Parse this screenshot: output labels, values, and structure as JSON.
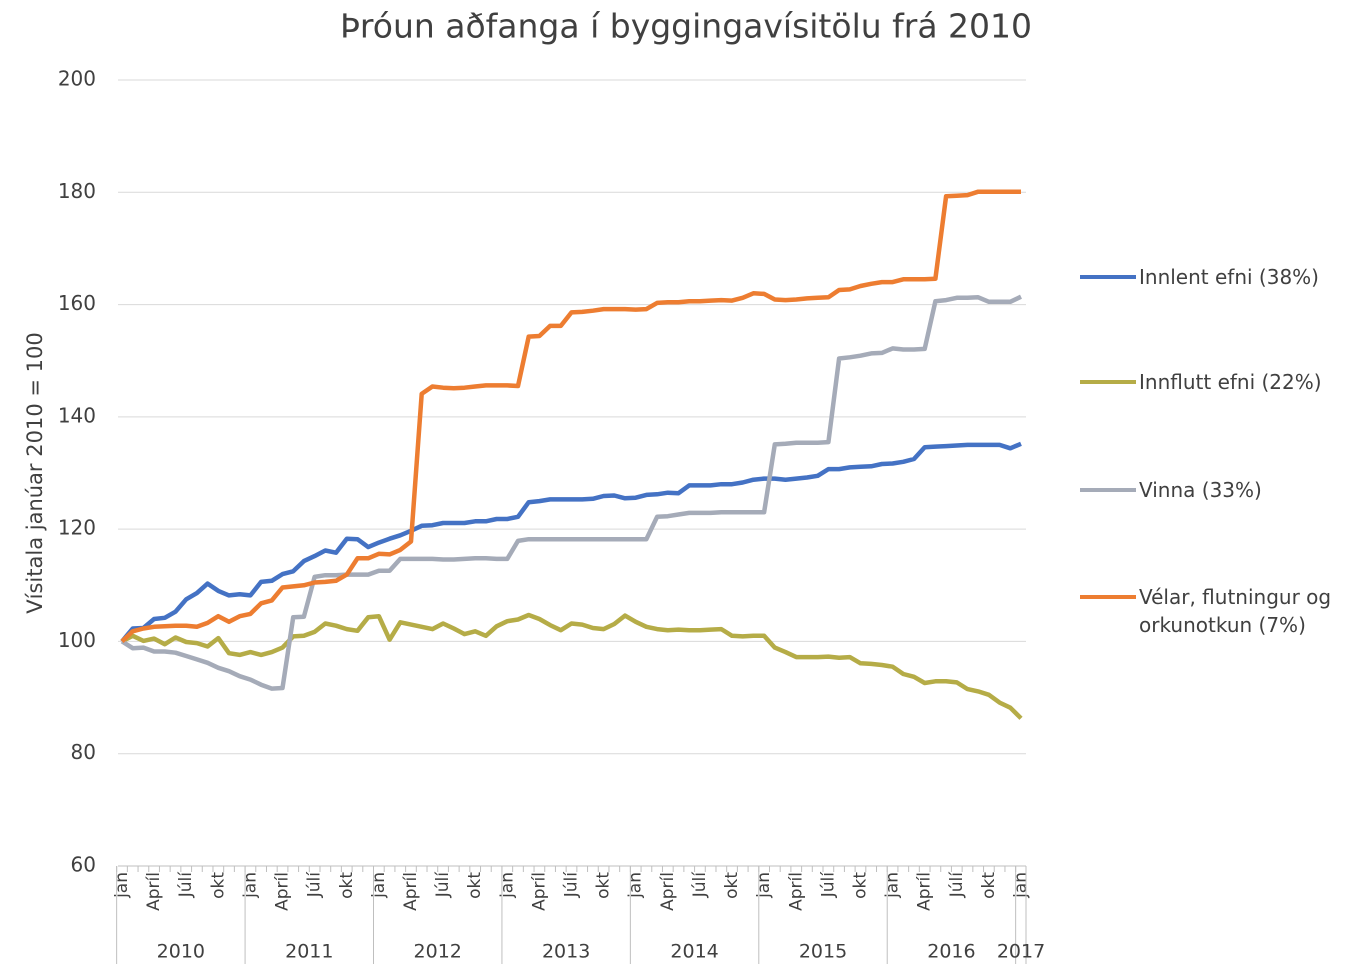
{
  "chart_data": {
    "type": "line",
    "title": "Þróun aðfanga í byggingavísitölu frá 2010",
    "y_label": "Vísitala janúar 2010 = 100",
    "categories": [
      "jan",
      null,
      null,
      "Apríl",
      null,
      null,
      "Júlí",
      null,
      null,
      "okt",
      null,
      null,
      "jan",
      null,
      null,
      "Apríl",
      null,
      null,
      "Júlí",
      null,
      null,
      "okt",
      null,
      null,
      "jan",
      null,
      null,
      "Apríl",
      null,
      null,
      "Júlí",
      null,
      null,
      "okt",
      null,
      null,
      "jan",
      null,
      null,
      "Apríl",
      null,
      null,
      "Júlí",
      null,
      null,
      "okt",
      null,
      null,
      "jan",
      null,
      null,
      "Apríl",
      null,
      null,
      "Júlí",
      null,
      null,
      "okt",
      null,
      null,
      "jan",
      null,
      null,
      "Apríl",
      null,
      null,
      "Júlí",
      null,
      null,
      "okt",
      null,
      null,
      "jan",
      null,
      null,
      "Apríl",
      null,
      null,
      "Júlí",
      null,
      null,
      "okt",
      null,
      null,
      "jan"
    ],
    "years": [
      "2010",
      "2011",
      "2012",
      "2013",
      "2014",
      "2015",
      "2016",
      "2017"
    ],
    "ylim": [
      60,
      200
    ],
    "yticks": [
      60,
      80,
      100,
      120,
      140,
      160,
      180,
      200
    ],
    "grid": true,
    "legend": "right",
    "series": [
      {
        "name": "Innlent efni (38%)",
        "color": "#4472c4",
        "values": [
          100,
          102.3,
          102.4,
          104,
          104.2,
          105.3,
          107.5,
          108.6,
          110.3,
          109,
          108.2,
          108.4,
          108.2,
          110.6,
          110.8,
          112,
          112.5,
          114.3,
          115.2,
          116.2,
          115.8,
          118.3,
          118.2,
          116.8,
          117.6,
          118.3,
          118.9,
          119.7,
          120.6,
          120.7,
          121.1,
          121.1,
          121.1,
          121.4,
          121.4,
          121.8,
          121.8,
          122.2,
          124.8,
          125,
          125.3,
          125.3,
          125.3,
          125.3,
          125.4,
          125.9,
          126,
          125.5,
          125.6,
          126.1,
          126.2,
          126.5,
          126.4,
          127.8,
          127.8,
          127.8,
          128,
          128,
          128.3,
          128.8,
          129,
          129,
          128.8,
          129,
          129.2,
          129.5,
          130.7,
          130.7,
          131,
          131.1,
          131.2,
          131.6,
          131.7,
          132,
          132.5,
          134.6,
          134.7,
          134.8,
          134.9,
          135,
          135,
          135,
          135,
          134.4,
          135.2
        ]
      },
      {
        "name": "Innflutt efni (22%)",
        "color": "#b5ac47",
        "values": [
          100,
          101,
          100.1,
          100.5,
          99.5,
          100.7,
          99.9,
          99.7,
          99.1,
          100.6,
          97.9,
          97.6,
          98.1,
          97.6,
          98.1,
          98.9,
          100.9,
          101,
          101.7,
          103.2,
          102.8,
          102.2,
          101.9,
          104.3,
          104.5,
          100.3,
          103.4,
          103,
          102.6,
          102.2,
          103.2,
          102.3,
          101.3,
          101.8,
          101,
          102.7,
          103.6,
          103.9,
          104.7,
          104,
          102.9,
          102,
          103.2,
          103,
          102.4,
          102.2,
          103.1,
          104.6,
          103.5,
          102.6,
          102.2,
          102,
          102.1,
          102,
          102,
          102.1,
          102.2,
          101,
          100.9,
          101,
          101,
          98.9,
          98.1,
          97.2,
          97.2,
          97.2,
          97.3,
          97.1,
          97.2,
          96.1,
          96,
          95.8,
          95.5,
          94.2,
          93.7,
          92.6,
          92.9,
          92.9,
          92.7,
          91.5,
          91.1,
          90.5,
          89.1,
          88.2,
          86.3
        ]
      },
      {
        "name": "Vinna (33%)",
        "color": "#a5abb8",
        "values": [
          100,
          98.8,
          98.9,
          98.2,
          98.2,
          98,
          97.4,
          96.8,
          96.2,
          95.3,
          94.7,
          93.8,
          93.2,
          92.3,
          91.6,
          91.7,
          104.3,
          104.4,
          111.5,
          111.8,
          111.8,
          111.9,
          111.9,
          111.9,
          112.6,
          112.6,
          114.7,
          114.7,
          114.7,
          114.7,
          114.6,
          114.6,
          114.7,
          114.8,
          114.8,
          114.7,
          114.7,
          117.9,
          118.2,
          118.2,
          118.2,
          118.2,
          118.2,
          118.2,
          118.2,
          118.2,
          118.2,
          118.2,
          118.2,
          118.2,
          122.2,
          122.3,
          122.6,
          122.9,
          122.9,
          122.9,
          123,
          123,
          123,
          123,
          123,
          135.1,
          135.2,
          135.4,
          135.4,
          135.4,
          135.5,
          150.4,
          150.6,
          150.9,
          151.3,
          151.4,
          152.2,
          152,
          152,
          152.1,
          160.6,
          160.8,
          161.2,
          161.2,
          161.3,
          160.5,
          160.5,
          160.5,
          161.4
        ]
      },
      {
        "name": "Vélar, flutningur og orkunotkun (7%)",
        "color": "#ed7d31",
        "values": [
          100,
          101.8,
          102.3,
          102.6,
          102.7,
          102.8,
          102.8,
          102.6,
          103.3,
          104.5,
          103.5,
          104.5,
          104.9,
          106.8,
          107.3,
          109.6,
          109.8,
          110,
          110.5,
          110.6,
          110.8,
          111.9,
          114.8,
          114.8,
          115.6,
          115.5,
          116.3,
          117.8,
          144.1,
          145.4,
          145.2,
          145.1,
          145.2,
          145.4,
          145.6,
          145.6,
          145.6,
          145.5,
          154.3,
          154.4,
          156.2,
          156.2,
          158.6,
          158.7,
          158.9,
          159.2,
          159.2,
          159.2,
          159.1,
          159.2,
          160.3,
          160.4,
          160.4,
          160.6,
          160.6,
          160.7,
          160.8,
          160.7,
          161.2,
          162,
          161.9,
          160.9,
          160.8,
          160.9,
          161.1,
          161.2,
          161.3,
          162.6,
          162.7,
          163.3,
          163.7,
          164,
          164,
          164.5,
          164.5,
          164.5,
          164.6,
          179.3,
          179.4,
          179.5,
          180.1,
          180.1,
          180.1,
          180.1,
          180.1
        ]
      }
    ]
  }
}
